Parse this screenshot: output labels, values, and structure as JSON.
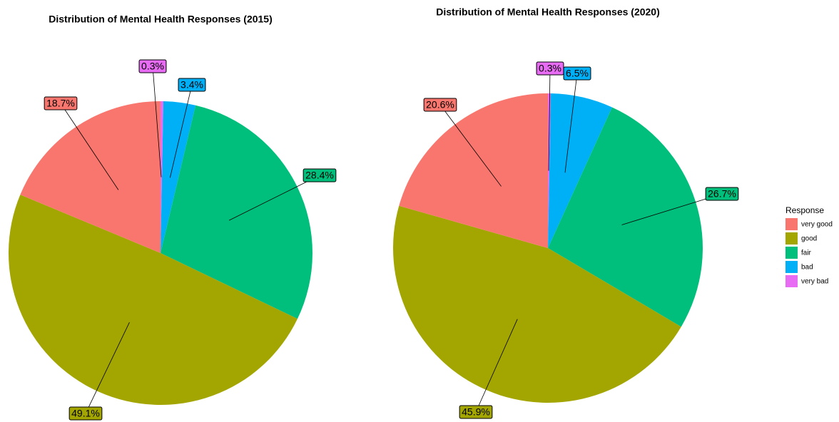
{
  "chart_data": [
    {
      "type": "pie",
      "title": "Distribution of Mental Health Responses (2015)",
      "categories": [
        "very good",
        "good",
        "fair",
        "bad",
        "very bad"
      ],
      "values": [
        18.7,
        49.1,
        28.4,
        3.4,
        0.3
      ],
      "value_labels": [
        "18.7%",
        "49.1%",
        "28.4%",
        "3.4%",
        "0.3%"
      ],
      "colors": [
        "#F8766D",
        "#A3A500",
        "#00BF7D",
        "#00B0F6",
        "#E76BF3"
      ]
    },
    {
      "type": "pie",
      "title": "Distribution of Mental Health Responses (2020)",
      "categories": [
        "very good",
        "good",
        "fair",
        "bad",
        "very bad"
      ],
      "values": [
        20.6,
        45.9,
        26.7,
        6.5,
        0.3
      ],
      "value_labels": [
        "20.6%",
        "45.9%",
        "26.7%",
        "6.5%",
        "0.3%"
      ],
      "colors": [
        "#F8766D",
        "#A3A500",
        "#00BF7D",
        "#00B0F6",
        "#E76BF3"
      ],
      "legend_title": "Response"
    }
  ]
}
